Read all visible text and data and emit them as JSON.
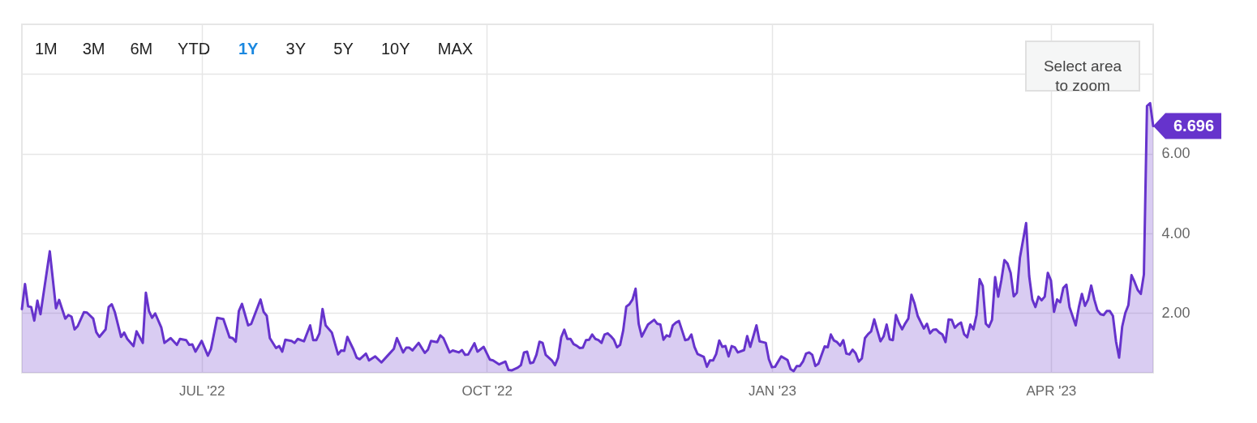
{
  "chart_data": {
    "type": "area",
    "x": [
      "2022-05-04",
      "2022-05-05",
      "2022-05-06",
      "2022-05-07",
      "2022-05-08",
      "2022-05-09",
      "2022-05-10",
      "2022-05-13",
      "2022-05-15",
      "2022-05-16",
      "2022-05-18",
      "2022-05-19",
      "2022-05-20",
      "2022-05-21",
      "2022-05-22",
      "2022-05-24",
      "2022-05-25",
      "2022-05-27",
      "2022-05-28",
      "2022-05-29",
      "2022-05-31",
      "2022-06-01",
      "2022-06-02",
      "2022-06-03",
      "2022-06-05",
      "2022-06-06",
      "2022-06-07",
      "2022-06-09",
      "2022-06-10",
      "2022-06-12",
      "2022-06-13",
      "2022-06-14",
      "2022-06-15",
      "2022-06-16",
      "2022-06-18",
      "2022-06-19",
      "2022-06-21",
      "2022-06-23",
      "2022-06-24",
      "2022-06-26",
      "2022-06-27",
      "2022-06-28",
      "2022-06-29",
      "2022-07-01",
      "2022-07-03",
      "2022-07-04",
      "2022-07-06",
      "2022-07-08",
      "2022-07-10",
      "2022-07-11",
      "2022-07-12",
      "2022-07-13",
      "2022-07-14",
      "2022-07-16",
      "2022-07-17",
      "2022-07-20",
      "2022-07-21",
      "2022-07-22",
      "2022-07-23",
      "2022-07-25",
      "2022-07-26",
      "2022-07-27",
      "2022-07-28",
      "2022-07-30",
      "2022-07-31",
      "2022-08-01",
      "2022-08-03",
      "2022-08-05",
      "2022-08-06",
      "2022-08-07",
      "2022-08-08",
      "2022-08-09",
      "2022-08-10",
      "2022-08-12",
      "2022-08-14",
      "2022-08-15",
      "2022-08-16",
      "2022-08-17",
      "2022-08-19",
      "2022-08-20",
      "2022-08-21",
      "2022-08-23",
      "2022-08-24",
      "2022-08-26",
      "2022-08-28",
      "2022-08-30",
      "2022-09-01",
      "2022-09-02",
      "2022-09-04",
      "2022-09-05",
      "2022-09-06",
      "2022-09-07",
      "2022-09-09",
      "2022-09-11",
      "2022-09-12",
      "2022-09-13",
      "2022-09-15",
      "2022-09-16",
      "2022-09-17",
      "2022-09-19",
      "2022-09-20",
      "2022-09-22",
      "2022-09-23",
      "2022-09-24",
      "2022-09-25",
      "2022-09-27",
      "2022-09-28",
      "2022-09-30",
      "2022-10-02",
      "2022-10-03",
      "2022-10-05",
      "2022-10-07",
      "2022-10-08",
      "2022-10-09",
      "2022-10-11",
      "2022-10-12",
      "2022-10-13",
      "2022-10-14",
      "2022-10-15",
      "2022-10-16",
      "2022-10-17",
      "2022-10-18",
      "2022-10-19",
      "2022-10-20",
      "2022-10-22",
      "2022-10-23",
      "2022-10-24",
      "2022-10-25",
      "2022-10-26",
      "2022-10-27",
      "2022-10-28",
      "2022-10-29",
      "2022-10-30",
      "2022-10-31",
      "2022-11-01",
      "2022-11-02",
      "2022-11-03",
      "2022-11-04",
      "2022-11-05",
      "2022-11-06",
      "2022-11-07",
      "2022-11-08",
      "2022-11-09",
      "2022-11-10",
      "2022-11-11",
      "2022-11-12",
      "2022-11-13",
      "2022-11-14",
      "2022-11-15",
      "2022-11-16",
      "2022-11-17",
      "2022-11-18",
      "2022-11-19",
      "2022-11-20",
      "2022-11-21",
      "2022-11-22",
      "2022-11-24",
      "2022-11-25",
      "2022-11-26",
      "2022-11-27",
      "2022-11-28",
      "2022-11-29",
      "2022-11-30",
      "2022-12-01",
      "2022-12-02",
      "2022-12-03",
      "2022-12-04",
      "2022-12-05",
      "2022-12-06",
      "2022-12-07",
      "2022-12-08",
      "2022-12-10",
      "2022-12-11",
      "2022-12-12",
      "2022-12-13",
      "2022-12-14",
      "2022-12-15",
      "2022-12-16",
      "2022-12-17",
      "2022-12-18",
      "2022-12-19",
      "2022-12-20",
      "2022-12-21",
      "2022-12-23",
      "2022-12-24",
      "2022-12-25",
      "2022-12-27",
      "2022-12-28",
      "2022-12-29",
      "2022-12-30",
      "2022-12-31",
      "2023-01-01",
      "2023-01-02",
      "2023-01-04",
      "2023-01-06",
      "2023-01-07",
      "2023-01-08",
      "2023-01-09",
      "2023-01-10",
      "2023-01-11",
      "2023-01-12",
      "2023-01-13",
      "2023-01-14",
      "2023-01-15",
      "2023-01-16",
      "2023-01-17",
      "2023-01-18",
      "2023-01-19",
      "2023-01-20",
      "2023-01-21",
      "2023-01-22",
      "2023-01-23",
      "2023-01-24",
      "2023-01-25",
      "2023-01-26",
      "2023-01-27",
      "2023-01-28",
      "2023-01-29",
      "2023-01-30",
      "2023-01-31",
      "2023-02-01",
      "2023-02-02",
      "2023-02-03",
      "2023-02-04",
      "2023-02-05",
      "2023-02-06",
      "2023-02-07",
      "2023-02-08",
      "2023-02-09",
      "2023-02-10",
      "2023-02-11",
      "2023-02-12",
      "2023-02-13",
      "2023-02-14",
      "2023-02-15",
      "2023-02-16",
      "2023-02-17",
      "2023-02-19",
      "2023-02-20",
      "2023-02-21",
      "2023-02-22",
      "2023-02-23",
      "2023-02-24",
      "2023-02-25",
      "2023-02-26",
      "2023-02-27",
      "2023-02-28",
      "2023-03-01",
      "2023-03-02",
      "2023-03-03",
      "2023-03-04",
      "2023-03-05",
      "2023-03-06",
      "2023-03-07",
      "2023-03-08",
      "2023-03-09",
      "2023-03-10",
      "2023-03-11",
      "2023-03-12",
      "2023-03-13",
      "2023-03-14",
      "2023-03-15",
      "2023-03-16",
      "2023-03-17",
      "2023-03-18",
      "2023-03-19",
      "2023-03-20",
      "2023-03-21",
      "2023-03-22",
      "2023-03-24",
      "2023-03-25",
      "2023-03-26",
      "2023-03-27",
      "2023-03-28",
      "2023-03-29",
      "2023-03-30",
      "2023-03-31",
      "2023-04-01",
      "2023-04-02",
      "2023-04-03",
      "2023-04-04",
      "2023-04-05",
      "2023-04-06",
      "2023-04-07",
      "2023-04-09",
      "2023-04-10",
      "2023-04-11",
      "2023-04-12",
      "2023-04-13",
      "2023-04-14",
      "2023-04-15",
      "2023-04-16",
      "2023-04-17",
      "2023-04-18",
      "2023-04-19",
      "2023-04-20",
      "2023-04-21",
      "2023-04-22",
      "2023-04-23",
      "2023-04-24",
      "2023-04-25",
      "2023-04-26",
      "2023-04-27",
      "2023-04-28",
      "2023-04-29",
      "2023-04-30",
      "2023-05-01",
      "2023-05-02",
      "2023-05-03",
      "2023-05-04"
    ],
    "series": [
      {
        "color": "#6633cc",
        "values": [
          2.1,
          2.73,
          2.17,
          2.15,
          1.81,
          2.31,
          1.97,
          3.55,
          2.12,
          2.33,
          1.86,
          1.95,
          1.91,
          1.59,
          1.67,
          2.02,
          2.01,
          1.86,
          1.52,
          1.4,
          1.59,
          2.15,
          2.22,
          2.02,
          1.4,
          1.51,
          1.35,
          1.17,
          1.54,
          1.25,
          2.51,
          2.05,
          1.88,
          1.99,
          1.63,
          1.25,
          1.37,
          1.2,
          1.35,
          1.32,
          1.2,
          1.21,
          1.03,
          1.3,
          0.93,
          1.1,
          1.88,
          1.85,
          1.39,
          1.37,
          1.28,
          2.05,
          2.23,
          1.69,
          1.73,
          2.34,
          2.03,
          1.93,
          1.37,
          1.12,
          1.17,
          1.03,
          1.33,
          1.3,
          1.25,
          1.35,
          1.29,
          1.69,
          1.32,
          1.32,
          1.49,
          2.1,
          1.69,
          1.51,
          0.96,
          1.06,
          1.05,
          1.4,
          1.08,
          0.88,
          0.84,
          0.98,
          0.81,
          0.91,
          0.76,
          0.93,
          1.1,
          1.37,
          1.01,
          1.13,
          1.13,
          1.06,
          1.25,
          1.0,
          1.08,
          1.3,
          1.27,
          1.44,
          1.37,
          1.01,
          1.06,
          1.01,
          1.07,
          0.95,
          0.96,
          1.24,
          1.03,
          1.15,
          0.83,
          0.81,
          0.71,
          0.78,
          0.57,
          0.56,
          0.63,
          0.69,
          1.01,
          1.03,
          0.74,
          0.76,
          0.95,
          1.28,
          1.25,
          0.95,
          0.81,
          0.69,
          0.88,
          1.39,
          1.58,
          1.35,
          1.35,
          1.22,
          1.18,
          1.12,
          1.13,
          1.32,
          1.33,
          1.46,
          1.35,
          1.32,
          1.25,
          1.46,
          1.49,
          1.42,
          1.33,
          1.14,
          1.2,
          1.56,
          2.16,
          2.22,
          2.34,
          2.61,
          1.73,
          1.41,
          1.56,
          1.71,
          1.83,
          1.73,
          1.71,
          1.33,
          1.44,
          1.41,
          1.69,
          1.76,
          1.8,
          1.56,
          1.32,
          1.34,
          1.46,
          1.15,
          0.97,
          0.9,
          0.65,
          0.81,
          0.81,
          0.97,
          1.31,
          1.15,
          1.17,
          0.91,
          1.17,
          1.14,
          1.01,
          1.07,
          1.42,
          1.15,
          1.69,
          1.29,
          1.27,
          1.25,
          0.84,
          0.64,
          0.65,
          0.91,
          0.82,
          0.59,
          0.54,
          0.67,
          0.67,
          0.78,
          0.98,
          1.01,
          0.95,
          0.67,
          0.73,
          0.95,
          1.16,
          1.14,
          1.46,
          1.31,
          1.27,
          1.18,
          1.32,
          0.98,
          0.96,
          1.08,
          0.99,
          0.78,
          0.86,
          1.37,
          1.47,
          1.54,
          1.84,
          1.56,
          1.29,
          1.41,
          1.71,
          1.34,
          1.32,
          1.95,
          1.74,
          1.59,
          1.74,
          1.86,
          2.46,
          2.24,
          1.93,
          1.61,
          1.73,
          1.49,
          1.58,
          1.59,
          1.51,
          1.46,
          1.27,
          1.84,
          1.83,
          1.63,
          1.71,
          1.76,
          1.47,
          1.39,
          1.71,
          1.59,
          1.95,
          2.85,
          2.68,
          1.73,
          1.65,
          1.83,
          2.9,
          2.41,
          2.82,
          3.33,
          3.24,
          3.01,
          2.42,
          2.51,
          3.39,
          4.26,
          2.92,
          2.34,
          2.15,
          2.41,
          2.32,
          2.41,
          3.01,
          2.82,
          2.03,
          2.34,
          2.27,
          2.63,
          2.71,
          2.15,
          1.69,
          2.14,
          2.48,
          2.18,
          2.34,
          2.69,
          2.34,
          2.07,
          1.97,
          1.95,
          2.05,
          2.05,
          1.93,
          1.29,
          0.88,
          1.66,
          2.0,
          2.2,
          2.95,
          2.78,
          2.58,
          2.48,
          2.97,
          7.2,
          7.27,
          6.696
        ]
      }
    ],
    "xlim": [
      "2022-05-04",
      "2023-05-04"
    ],
    "xticks": [
      {
        "value": "2022-07-01",
        "label": "JUL '22"
      },
      {
        "value": "2022-10-01",
        "label": "OCT '22"
      },
      {
        "value": "2023-01-01",
        "label": "JAN '23"
      },
      {
        "value": "2023-04-01",
        "label": "APR '23"
      }
    ],
    "ylim": [
      0.5,
      9.25
    ],
    "yticks": [
      {
        "value": 2,
        "label": "2.00"
      },
      {
        "value": 4,
        "label": "4.00"
      },
      {
        "value": 6,
        "label": "6.00"
      },
      {
        "value": 8,
        "label": null
      }
    ],
    "grid": true,
    "annotations": [
      "1M",
      "3M",
      "6M",
      "YTD",
      "1Y",
      "3Y",
      "5Y",
      "10Y",
      "MAX",
      "Select area\nto zoom",
      {
        "text": "6.696",
        "x": "2023-05-04",
        "y": 6.696
      }
    ]
  }
}
